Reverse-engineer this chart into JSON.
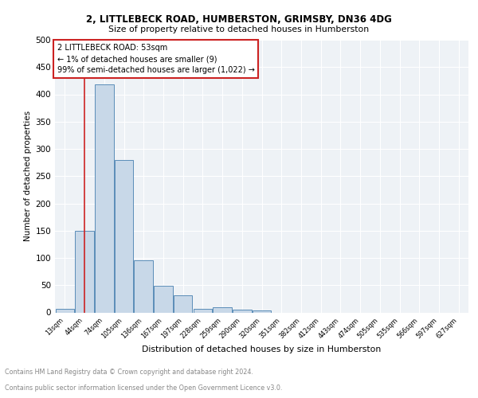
{
  "title1": "2, LITTLEBECK ROAD, HUMBERSTON, GRIMSBY, DN36 4DG",
  "title2": "Size of property relative to detached houses in Humberston",
  "xlabel": "Distribution of detached houses by size in Humberston",
  "ylabel": "Number of detached properties",
  "bin_labels": [
    "13sqm",
    "44sqm",
    "74sqm",
    "105sqm",
    "136sqm",
    "167sqm",
    "197sqm",
    "228sqm",
    "259sqm",
    "290sqm",
    "320sqm",
    "351sqm",
    "382sqm",
    "412sqm",
    "443sqm",
    "474sqm",
    "505sqm",
    "535sqm",
    "566sqm",
    "597sqm",
    "627sqm"
  ],
  "bar_heights": [
    6,
    150,
    418,
    280,
    95,
    49,
    31,
    7,
    10,
    5,
    3,
    0,
    0,
    0,
    0,
    0,
    0,
    0,
    0,
    0,
    0
  ],
  "bar_color": "#c8d8e8",
  "bar_edge_color": "#5b8db8",
  "vline_x": 1,
  "vline_color": "#cc2222",
  "annotation_text": "2 LITTLEBECK ROAD: 53sqm\n← 1% of detached houses are smaller (9)\n99% of semi-detached houses are larger (1,022) →",
  "annotation_box_color": "#ffffff",
  "annotation_box_edge": "#cc2222",
  "ylim": [
    0,
    500
  ],
  "yticks": [
    0,
    50,
    100,
    150,
    200,
    250,
    300,
    350,
    400,
    450,
    500
  ],
  "footnote1": "Contains HM Land Registry data © Crown copyright and database right 2024.",
  "footnote2": "Contains public sector information licensed under the Open Government Licence v3.0.",
  "bg_color": "#eef2f6",
  "plot_bg_color": "#eef2f6"
}
